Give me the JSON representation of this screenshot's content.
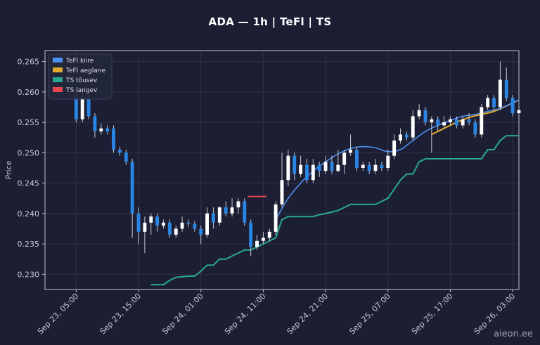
{
  "chart_data": {
    "type": "candlestick",
    "title": "ADA — 1h  |  TeFl  |  TS",
    "ylabel": "Price",
    "ylim": [
      0.2275,
      0.2668
    ],
    "yticks": [
      0.23,
      0.235,
      0.24,
      0.245,
      0.25,
      0.255,
      0.26,
      0.265
    ],
    "ytick_labels": [
      "0.230",
      "0.235",
      "0.240",
      "0.245",
      "0.250",
      "0.255",
      "0.260",
      "0.265"
    ],
    "xlim": [
      -5,
      71
    ],
    "xticks": [
      0,
      10,
      20,
      30,
      40,
      50,
      60,
      70
    ],
    "xtick_labels": [
      "Sep 23, 05:00",
      "Sep 23, 15:00",
      "Sep 24, 01:00",
      "Sep 24, 11:00",
      "Sep 24, 21:00",
      "Sep 25, 07:00",
      "Sep 25, 17:00",
      "Sep 26, 03:00"
    ],
    "grid": true,
    "legend_position": "top-left",
    "legend": [
      {
        "label": "TeFl kiire",
        "color": "#4d8ff0"
      },
      {
        "label": "TeFl aeglane",
        "color": "#e0a82e"
      },
      {
        "label": "TS tõusev",
        "color": "#2aa88f"
      },
      {
        "label": "TS langev",
        "color": "#e5484d"
      }
    ],
    "candles": [
      [
        0,
        0.2595,
        0.2555,
        0.2605,
        0.255
      ],
      [
        1,
        0.2555,
        0.259,
        0.26,
        0.255
      ],
      [
        2,
        0.259,
        0.256,
        0.2595,
        0.2555
      ],
      [
        3,
        0.256,
        0.2535,
        0.2565,
        0.2525
      ],
      [
        4,
        0.2535,
        0.254,
        0.2548,
        0.253
      ],
      [
        5,
        0.254,
        0.2535,
        0.2545,
        0.253
      ],
      [
        6,
        0.254,
        0.2505,
        0.2545,
        0.25
      ],
      [
        7,
        0.2505,
        0.25,
        0.251,
        0.2495
      ],
      [
        8,
        0.25,
        0.2485,
        0.2505,
        0.248
      ],
      [
        9,
        0.2485,
        0.24,
        0.249,
        0.236
      ],
      [
        10,
        0.24,
        0.237,
        0.241,
        0.235
      ],
      [
        11,
        0.237,
        0.2385,
        0.2395,
        0.2335
      ],
      [
        12,
        0.2385,
        0.2395,
        0.24,
        0.2365
      ],
      [
        13,
        0.2395,
        0.238,
        0.24,
        0.237
      ],
      [
        14,
        0.238,
        0.2385,
        0.239,
        0.2375
      ],
      [
        15,
        0.2385,
        0.2365,
        0.239,
        0.236
      ],
      [
        16,
        0.2365,
        0.2375,
        0.238,
        0.236
      ],
      [
        17,
        0.2375,
        0.2385,
        0.2395,
        0.237
      ],
      [
        18,
        0.2385,
        0.2383,
        0.239,
        0.2378
      ],
      [
        19,
        0.2383,
        0.2375,
        0.2388,
        0.237
      ],
      [
        20,
        0.2375,
        0.2365,
        0.238,
        0.235
      ],
      [
        21,
        0.2365,
        0.24,
        0.241,
        0.236
      ],
      [
        22,
        0.24,
        0.2385,
        0.241,
        0.2375
      ],
      [
        23,
        0.2385,
        0.241,
        0.2412,
        0.238
      ],
      [
        24,
        0.241,
        0.24,
        0.242,
        0.2395
      ],
      [
        25,
        0.24,
        0.241,
        0.2425,
        0.2395
      ],
      [
        26,
        0.241,
        0.242,
        0.2425,
        0.24
      ],
      [
        27,
        0.242,
        0.2385,
        0.2425,
        0.238
      ],
      [
        28,
        0.2385,
        0.2345,
        0.239,
        0.233
      ],
      [
        29,
        0.2345,
        0.2355,
        0.2365,
        0.234
      ],
      [
        30,
        0.2355,
        0.236,
        0.237,
        0.235
      ],
      [
        31,
        0.236,
        0.237,
        0.2375,
        0.2355
      ],
      [
        32,
        0.237,
        0.2415,
        0.242,
        0.2365
      ],
      [
        33,
        0.2415,
        0.2455,
        0.25,
        0.241
      ],
      [
        34,
        0.2455,
        0.2495,
        0.2505,
        0.2445
      ],
      [
        35,
        0.2495,
        0.2465,
        0.25,
        0.2455
      ],
      [
        36,
        0.2465,
        0.248,
        0.2495,
        0.246
      ],
      [
        37,
        0.248,
        0.2455,
        0.249,
        0.245
      ],
      [
        38,
        0.2455,
        0.248,
        0.249,
        0.245
      ],
      [
        39,
        0.248,
        0.247,
        0.2485,
        0.246
      ],
      [
        40,
        0.247,
        0.2485,
        0.2495,
        0.2465
      ],
      [
        41,
        0.2485,
        0.247,
        0.2495,
        0.2465
      ],
      [
        42,
        0.247,
        0.248,
        0.2505,
        0.2468
      ],
      [
        43,
        0.248,
        0.25,
        0.2505,
        0.2465
      ],
      [
        44,
        0.25,
        0.2505,
        0.253,
        0.2495
      ],
      [
        45,
        0.2505,
        0.2475,
        0.251,
        0.247
      ],
      [
        46,
        0.2475,
        0.248,
        0.2485,
        0.247
      ],
      [
        47,
        0.248,
        0.247,
        0.2485,
        0.2465
      ],
      [
        48,
        0.247,
        0.248,
        0.249,
        0.2465
      ],
      [
        49,
        0.248,
        0.2475,
        0.2485,
        0.247
      ],
      [
        50,
        0.2475,
        0.2495,
        0.2505,
        0.247
      ],
      [
        51,
        0.2495,
        0.252,
        0.253,
        0.249
      ],
      [
        52,
        0.252,
        0.253,
        0.254,
        0.2515
      ],
      [
        53,
        0.253,
        0.2525,
        0.2535,
        0.252
      ],
      [
        54,
        0.2525,
        0.256,
        0.257,
        0.252
      ],
      [
        55,
        0.256,
        0.257,
        0.258,
        0.2555
      ],
      [
        56,
        0.257,
        0.255,
        0.2575,
        0.2545
      ],
      [
        57,
        0.255,
        0.2555,
        0.256,
        0.25
      ],
      [
        58,
        0.2555,
        0.2545,
        0.256,
        0.2535
      ],
      [
        59,
        0.2545,
        0.255,
        0.256,
        0.254
      ],
      [
        60,
        0.255,
        0.2555,
        0.256,
        0.2545
      ],
      [
        61,
        0.2555,
        0.2545,
        0.256,
        0.254
      ],
      [
        62,
        0.2545,
        0.2555,
        0.256,
        0.254
      ],
      [
        63,
        0.2555,
        0.255,
        0.2565,
        0.2545
      ],
      [
        64,
        0.255,
        0.253,
        0.2555,
        0.2525
      ],
      [
        65,
        0.253,
        0.2575,
        0.258,
        0.2525
      ],
      [
        66,
        0.2575,
        0.259,
        0.2595,
        0.257
      ],
      [
        67,
        0.259,
        0.2575,
        0.2595,
        0.257
      ],
      [
        68,
        0.2575,
        0.262,
        0.265,
        0.257
      ],
      [
        69,
        0.262,
        0.259,
        0.264,
        0.2585
      ],
      [
        70,
        0.259,
        0.2565,
        0.2595,
        0.256
      ],
      [
        71,
        0.2565,
        0.257,
        0.2575,
        0.2555
      ]
    ],
    "tefl_fast": {
      "x": [
        32,
        34,
        36,
        38,
        40,
        42,
        44,
        46,
        48,
        50,
        52,
        54,
        56,
        58,
        60,
        62,
        64,
        66,
        68,
        70,
        71
      ],
      "y": [
        0.239,
        0.2425,
        0.245,
        0.247,
        0.2485,
        0.2498,
        0.2507,
        0.251,
        0.2508,
        0.2502,
        0.2505,
        0.252,
        0.2535,
        0.2545,
        0.2553,
        0.256,
        0.2563,
        0.2568,
        0.2573,
        0.2582,
        0.2587
      ]
    },
    "tefl_slow": {
      "x": [
        57,
        59,
        61,
        63,
        65,
        67,
        69,
        71
      ],
      "y": [
        0.253,
        0.254,
        0.255,
        0.2558,
        0.2563,
        0.2568,
        0.2577,
        0.2587
      ]
    },
    "ts_rising": {
      "x": [
        12,
        14,
        15,
        16,
        18,
        19,
        20,
        21,
        22,
        23,
        24,
        25,
        26,
        27,
        28,
        32,
        33,
        34,
        38,
        39,
        40,
        42,
        44,
        48,
        50,
        51,
        52,
        53,
        54,
        55,
        56,
        65,
        66,
        67,
        68,
        69,
        70,
        71
      ],
      "y": [
        0.2283,
        0.2283,
        0.229,
        0.2295,
        0.2297,
        0.2297,
        0.2305,
        0.2315,
        0.2315,
        0.2325,
        0.2325,
        0.233,
        0.2335,
        0.234,
        0.234,
        0.236,
        0.239,
        0.2395,
        0.2395,
        0.2398,
        0.24,
        0.2405,
        0.2415,
        0.2415,
        0.2425,
        0.244,
        0.2455,
        0.2465,
        0.2465,
        0.2485,
        0.249,
        0.249,
        0.2505,
        0.2505,
        0.252,
        0.2528,
        0.2528,
        0.2528
      ]
    },
    "ts_falling": {
      "x": [
        27.5,
        30.5
      ],
      "y": [
        0.2428,
        0.2428
      ]
    },
    "colors": {
      "up": "#ffffff",
      "down": "#2a86e4",
      "wick": "#c8c8d0",
      "fast": "#4d8ff0",
      "slow": "#e0a82e",
      "rising": "#2aa88f",
      "falling": "#e5484d",
      "grid": "#2e3248",
      "axes": "#bfc2cc"
    }
  },
  "watermark": "aieon.ee"
}
